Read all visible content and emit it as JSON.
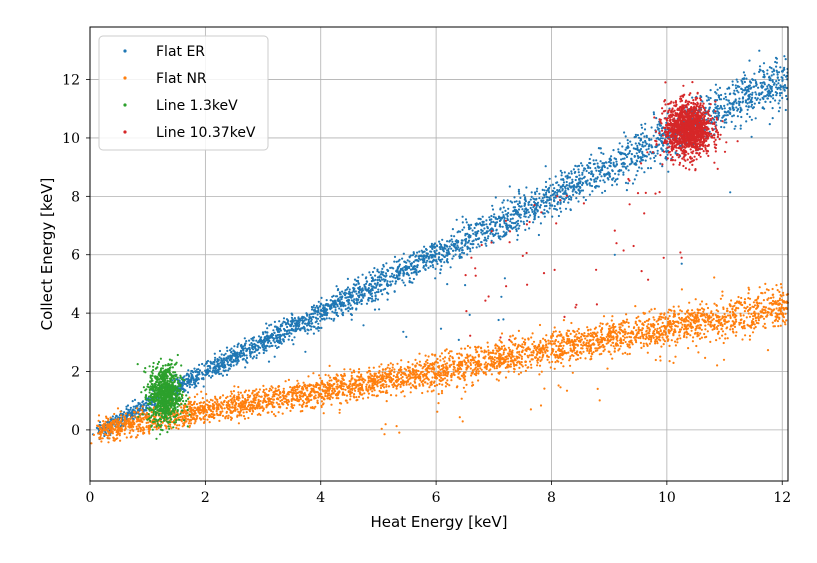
{
  "chart_data": {
    "type": "scatter",
    "xlabel": "Heat Energy [keV]",
    "ylabel": "Collect Energy [keV]",
    "xlim": [
      0,
      12.1
    ],
    "ylim": [
      -1.75,
      13.8
    ],
    "xticks": [
      "0",
      "2",
      "4",
      "6",
      "8",
      "10",
      "12"
    ],
    "yticks": [
      "0",
      "2",
      "4",
      "6",
      "8",
      "10",
      "12"
    ],
    "grid": true,
    "legend_position": "top-left",
    "series": [
      {
        "name": "Flat ER",
        "color": "#1f77b4",
        "description_of_points": "approx linear band y ≈ x, x in [0.2, 12.1], width ~0.5 keV",
        "trend": {
          "x": [
            0.2,
            2,
            4,
            6,
            8,
            10,
            12
          ],
          "y": [
            0.0,
            2.0,
            4.0,
            6.0,
            8.0,
            10.0,
            12.0
          ]
        }
      },
      {
        "name": "Flat NR",
        "color": "#ff7f0e",
        "trend": {
          "x": [
            0.2,
            2,
            4,
            6,
            8,
            10,
            12
          ],
          "y": [
            0.0,
            0.7,
            1.3,
            2.0,
            2.8,
            3.5,
            4.2
          ]
        }
      },
      {
        "name": "Line 1.3keV",
        "color": "#2ca02c",
        "center": {
          "x": 1.3,
          "y": 1.2
        }
      },
      {
        "name": "Line 10.37keV",
        "color": "#d62728",
        "center": {
          "x": 10.37,
          "y": 10.3
        }
      }
    ]
  }
}
